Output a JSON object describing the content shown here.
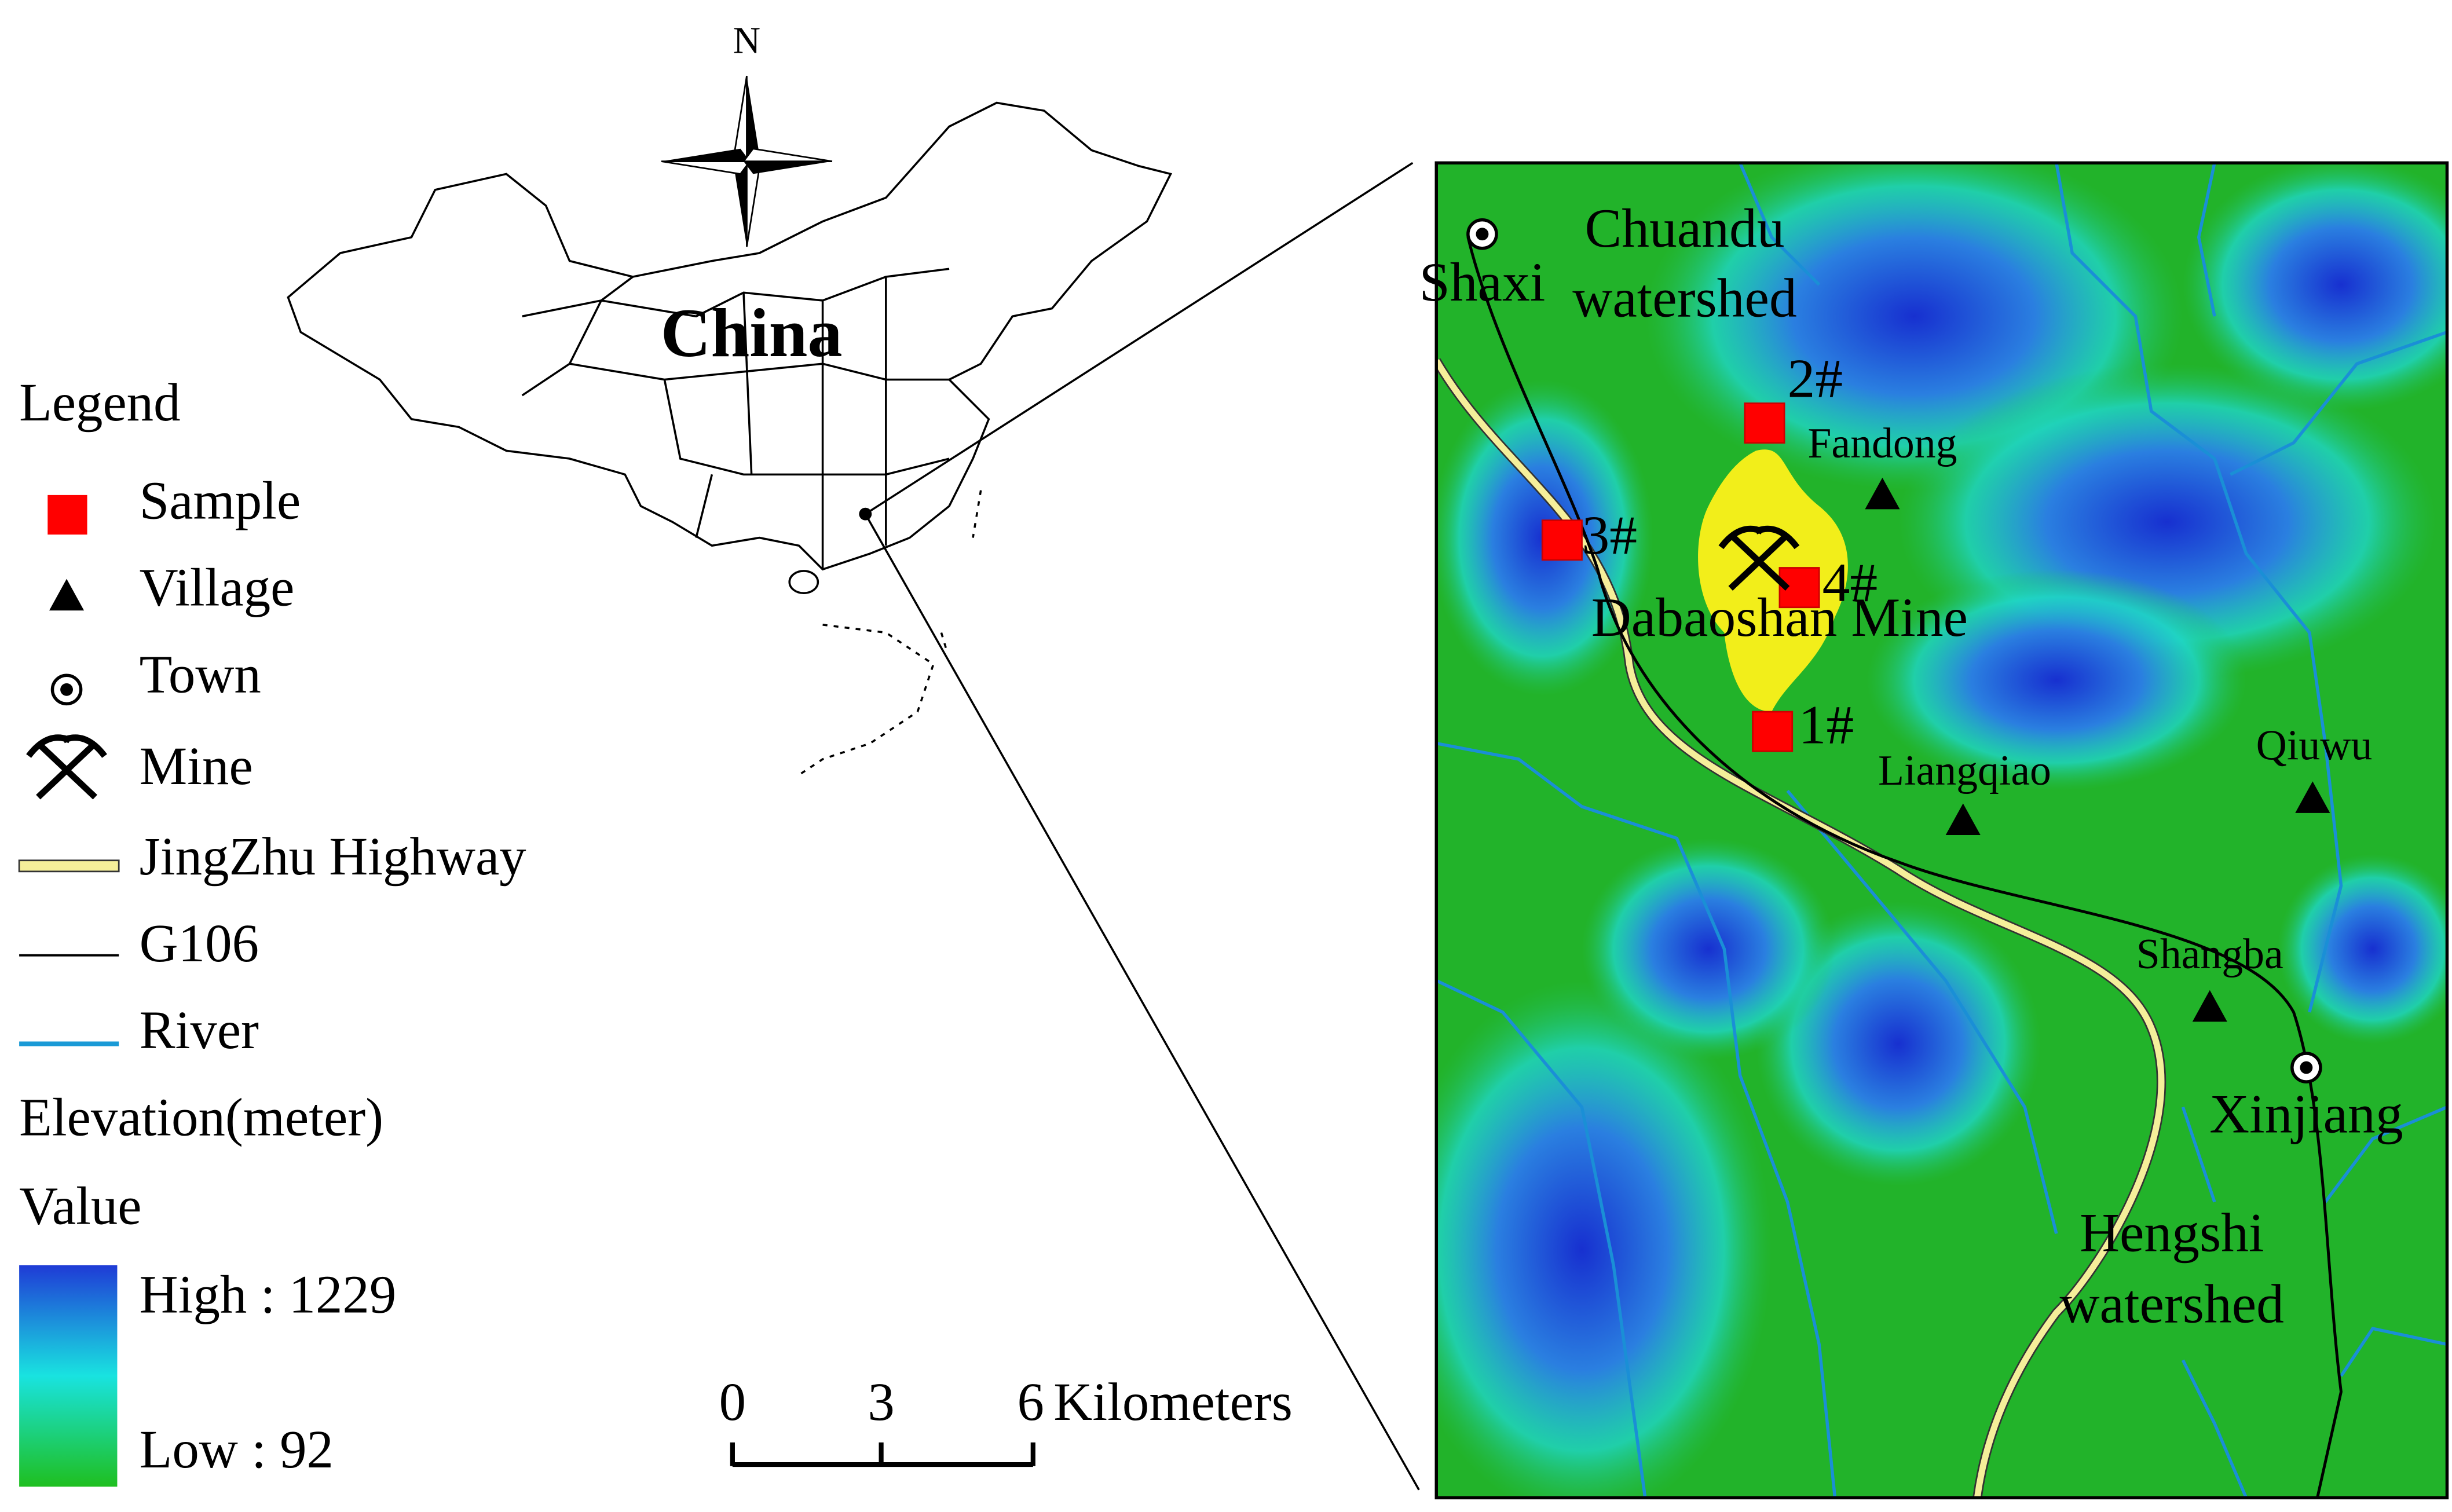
{
  "north": "N",
  "country": "China",
  "legend": {
    "title": "Legend",
    "items": [
      "Sample",
      "Village",
      "Town",
      "Mine",
      "JingZhu Highway",
      "G106",
      "River"
    ],
    "elevation_title": "Elevation(meter)",
    "value_title": "Value",
    "high": "High : 1229",
    "low": "Low : 92"
  },
  "scale_bar": {
    "labels": [
      "0",
      "3",
      "6"
    ],
    "unit": "Kilometers"
  },
  "map": {
    "samples": [
      "1#",
      "2#",
      "3#",
      "4#"
    ],
    "villages": [
      "Fandong",
      "Liangqiao",
      "Qiuwu",
      "Shangba"
    ],
    "towns": [
      "Shaxi",
      "Xinjiang"
    ],
    "mine": "Dabaoshan Mine",
    "watersheds": [
      [
        "Chuandu",
        "watershed"
      ],
      [
        "Hengshi",
        "watershed"
      ]
    ]
  }
}
